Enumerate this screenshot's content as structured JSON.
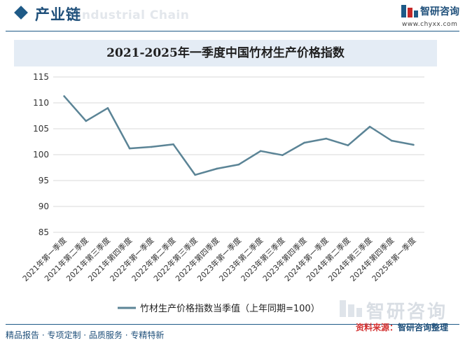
{
  "header": {
    "section_title": "产业链",
    "section_watermark": "Industrial Chain",
    "brand_name": "智研咨询",
    "brand_url": "www.chyxx.com"
  },
  "footer": {
    "services": "精品报告 · 专项定制 · 品质服务 · 专精特新",
    "source_label": "资料来源：",
    "source_value": "智研咨询整理",
    "watermark_brand": "智研咨询"
  },
  "colors": {
    "line": "#5b8496",
    "accent": "#1e4f7a",
    "title_bg": "#e4ecf5"
  },
  "chart_data": {
    "type": "line",
    "title": "2021-2025年一季度中国竹材生产价格指数",
    "categories": [
      "2021年第一季度",
      "2021年第二季度",
      "2021年第三季度",
      "2021年第四季度",
      "2022年第一季度",
      "2022年第二季度",
      "2022年第三季度",
      "2022年第四季度",
      "2023年第一季度",
      "2023年第二季度",
      "2023年第三季度",
      "2023年第四季度",
      "2024年第一季度",
      "2024年第二季度",
      "2024年第三季度",
      "2024年第四季度",
      "2025年第一季度"
    ],
    "series": [
      {
        "name": "竹材生产价格指数当季值（上年同期=100）",
        "values": [
          111.3,
          106.5,
          109.0,
          101.2,
          101.5,
          102.0,
          96.1,
          97.3,
          98.1,
          100.7,
          99.9,
          102.3,
          103.1,
          101.8,
          105.4,
          102.7,
          101.9
        ]
      }
    ],
    "y_ticks": [
      85,
      90,
      95,
      100,
      105,
      110,
      115
    ],
    "ylim": [
      85,
      115
    ],
    "grid": true,
    "legend_position": "bottom"
  }
}
